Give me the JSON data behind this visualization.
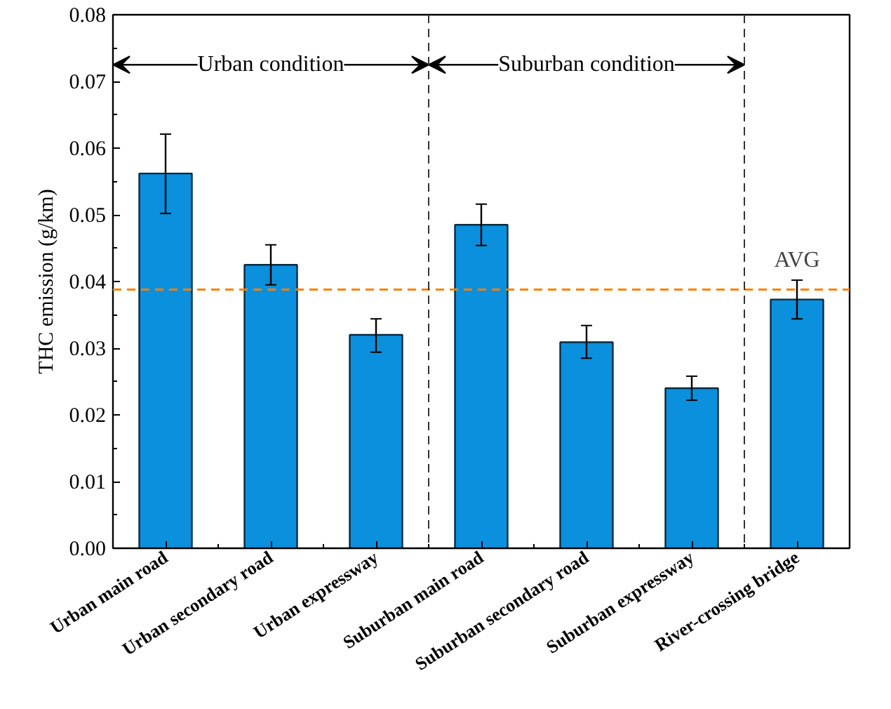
{
  "chart_data": {
    "type": "bar",
    "ylabel": "THC emission (g/km)",
    "categories": [
      "Urban main road",
      "Urban secondary road",
      "Urban expressway",
      "Suburban main road",
      "Suburban secondary road",
      "Suburban expressway",
      "River-crossing bridge"
    ],
    "values": [
      0.0562,
      0.0425,
      0.032,
      0.0485,
      0.0309,
      0.024,
      0.0373
    ],
    "errors": [
      [
        0.0502,
        0.0621
      ],
      [
        0.0395,
        0.0455
      ],
      [
        0.0294,
        0.0344
      ],
      [
        0.0454,
        0.0516
      ],
      [
        0.0285,
        0.0334
      ],
      [
        0.0222,
        0.0258
      ],
      [
        0.0344,
        0.0402
      ]
    ],
    "color": "#0a90dc",
    "ylim": [
      0,
      0.08
    ],
    "yticks": [
      {
        "value": 0,
        "label": "0.00"
      },
      {
        "value": 0.01,
        "label": "0.01"
      },
      {
        "value": 0.02,
        "label": "0.02"
      },
      {
        "value": 0.03,
        "label": "0.03"
      },
      {
        "value": 0.04,
        "label": "0.04"
      },
      {
        "value": 0.05,
        "label": "0.05"
      },
      {
        "value": 0.06,
        "label": "0.06"
      },
      {
        "value": 0.07,
        "label": "0.07"
      },
      {
        "value": 0.08,
        "label": "0.08"
      }
    ],
    "ref_lines": [
      {
        "axis": "y",
        "value": 0.0388,
        "label": "AVG",
        "color": "#ff8000",
        "line_style": "dashed"
      }
    ],
    "annotations": [
      "Urban condition",
      "Suburban condition"
    ],
    "grid": false
  }
}
